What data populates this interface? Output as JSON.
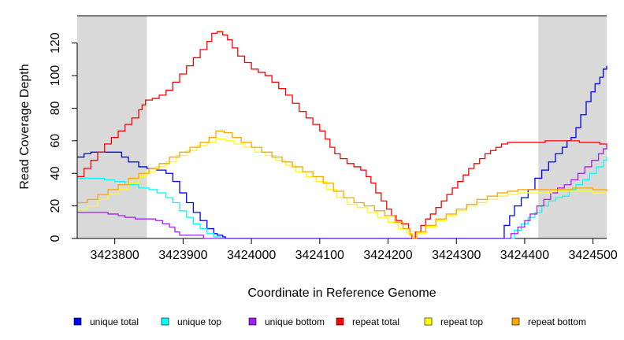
{
  "chart_data": {
    "type": "line",
    "xlabel": "Coordinate in Reference Genome",
    "ylabel": "Read Coverage Depth",
    "xlim": [
      3423745,
      3424520
    ],
    "ylim": [
      0,
      130
    ],
    "x_ticks": [
      3423800,
      3423900,
      3424000,
      3424100,
      3424200,
      3424300,
      3424400,
      3424500
    ],
    "x_tick_labels": [
      "3423800",
      "3423900",
      "3424000",
      "3424100",
      "3424200",
      "3424300",
      "3424400",
      "3424500"
    ],
    "y_ticks": [
      0,
      20,
      40,
      60,
      80,
      100,
      120
    ],
    "y_tick_labels": [
      "0",
      "20",
      "40",
      "60",
      "80",
      "100",
      "120"
    ],
    "shaded_regions": [
      [
        3423745,
        3423847
      ],
      [
        3424420,
        3424520
      ]
    ],
    "shade_color": "#d9d9d9",
    "step": true,
    "legend_position": "bottom",
    "series": [
      {
        "name": "unique total",
        "color": "#0000ff",
        "points": [
          [
            3423745,
            50
          ],
          [
            3423755,
            52
          ],
          [
            3423765,
            53
          ],
          [
            3423780,
            53
          ],
          [
            3423795,
            53
          ],
          [
            3423810,
            50
          ],
          [
            3423820,
            47
          ],
          [
            3423835,
            44
          ],
          [
            3423847,
            43
          ],
          [
            3423860,
            42
          ],
          [
            3423875,
            40
          ],
          [
            3423885,
            35
          ],
          [
            3423895,
            28
          ],
          [
            3423905,
            22
          ],
          [
            3423915,
            16
          ],
          [
            3423925,
            11
          ],
          [
            3423935,
            6
          ],
          [
            3423945,
            3
          ],
          [
            3423950,
            2
          ],
          [
            3423958,
            1
          ],
          [
            3423962,
            0
          ],
          [
            3424365,
            0
          ],
          [
            3424370,
            8
          ],
          [
            3424378,
            14
          ],
          [
            3424385,
            20
          ],
          [
            3424395,
            25
          ],
          [
            3424405,
            30
          ],
          [
            3424415,
            37
          ],
          [
            3424425,
            42
          ],
          [
            3424435,
            47
          ],
          [
            3424445,
            52
          ],
          [
            3424455,
            56
          ],
          [
            3424462,
            60
          ],
          [
            3424468,
            62
          ],
          [
            3424475,
            68
          ],
          [
            3424482,
            76
          ],
          [
            3424490,
            84
          ],
          [
            3424497,
            90
          ],
          [
            3424503,
            95
          ],
          [
            3424510,
            99
          ],
          [
            3424515,
            104
          ],
          [
            3424520,
            106
          ]
        ]
      },
      {
        "name": "unique top",
        "color": "#00ffff",
        "points": [
          [
            3423745,
            37
          ],
          [
            3423765,
            37
          ],
          [
            3423785,
            36
          ],
          [
            3423800,
            35
          ],
          [
            3423815,
            33
          ],
          [
            3423835,
            31
          ],
          [
            3423850,
            30
          ],
          [
            3423862,
            28
          ],
          [
            3423875,
            25
          ],
          [
            3423885,
            22
          ],
          [
            3423895,
            17
          ],
          [
            3423905,
            13
          ],
          [
            3423915,
            9
          ],
          [
            3423925,
            6
          ],
          [
            3423935,
            3
          ],
          [
            3423945,
            1
          ],
          [
            3423955,
            0
          ],
          [
            3424380,
            0
          ],
          [
            3424385,
            5
          ],
          [
            3424395,
            9
          ],
          [
            3424405,
            13
          ],
          [
            3424415,
            16
          ],
          [
            3424425,
            20
          ],
          [
            3424435,
            23
          ],
          [
            3424445,
            25
          ],
          [
            3424455,
            26
          ],
          [
            3424465,
            30
          ],
          [
            3424475,
            33
          ],
          [
            3424485,
            36
          ],
          [
            3424495,
            40
          ],
          [
            3424505,
            44
          ],
          [
            3424515,
            48
          ],
          [
            3424520,
            50
          ]
        ]
      },
      {
        "name": "unique bottom",
        "color": "#a020f0",
        "points": [
          [
            3423745,
            16
          ],
          [
            3423770,
            16
          ],
          [
            3423790,
            15
          ],
          [
            3423805,
            14
          ],
          [
            3423815,
            13
          ],
          [
            3423830,
            12
          ],
          [
            3423847,
            12
          ],
          [
            3423860,
            11
          ],
          [
            3423870,
            9
          ],
          [
            3423880,
            7
          ],
          [
            3423888,
            4
          ],
          [
            3423895,
            2
          ],
          [
            3423925,
            2
          ],
          [
            3423930,
            0
          ],
          [
            3424375,
            0
          ],
          [
            3424380,
            3
          ],
          [
            3424390,
            7
          ],
          [
            3424400,
            11
          ],
          [
            3424408,
            15
          ],
          [
            3424418,
            20
          ],
          [
            3424428,
            24
          ],
          [
            3424438,
            28
          ],
          [
            3424448,
            31
          ],
          [
            3424458,
            33
          ],
          [
            3424468,
            36
          ],
          [
            3424478,
            40
          ],
          [
            3424488,
            44
          ],
          [
            3424498,
            48
          ],
          [
            3424508,
            52
          ],
          [
            3424515,
            55
          ],
          [
            3424520,
            57
          ]
        ]
      },
      {
        "name": "repeat total",
        "color": "#ff0000",
        "points": [
          [
            3423745,
            38
          ],
          [
            3423755,
            43
          ],
          [
            3423765,
            48
          ],
          [
            3423775,
            53
          ],
          [
            3423785,
            58
          ],
          [
            3423795,
            62
          ],
          [
            3423805,
            66
          ],
          [
            3423815,
            70
          ],
          [
            3423825,
            74
          ],
          [
            3423835,
            79
          ],
          [
            3423840,
            82
          ],
          [
            3423845,
            85
          ],
          [
            3423855,
            86
          ],
          [
            3423865,
            88
          ],
          [
            3423875,
            91
          ],
          [
            3423885,
            96
          ],
          [
            3423895,
            101
          ],
          [
            3423905,
            106
          ],
          [
            3423915,
            111
          ],
          [
            3423925,
            116
          ],
          [
            3423935,
            121
          ],
          [
            3423942,
            126
          ],
          [
            3423950,
            127
          ],
          [
            3423958,
            125
          ],
          [
            3423965,
            122
          ],
          [
            3423972,
            117
          ],
          [
            3423980,
            112
          ],
          [
            3423990,
            108
          ],
          [
            3424000,
            104
          ],
          [
            3424010,
            102
          ],
          [
            3424020,
            100
          ],
          [
            3424030,
            96
          ],
          [
            3424040,
            92
          ],
          [
            3424050,
            88
          ],
          [
            3424060,
            83
          ],
          [
            3424070,
            78
          ],
          [
            3424080,
            74
          ],
          [
            3424090,
            70
          ],
          [
            3424100,
            66
          ],
          [
            3424108,
            61
          ],
          [
            3424115,
            56
          ],
          [
            3424122,
            52
          ],
          [
            3424130,
            49
          ],
          [
            3424140,
            46
          ],
          [
            3424150,
            44
          ],
          [
            3424160,
            42
          ],
          [
            3424168,
            38
          ],
          [
            3424175,
            34
          ],
          [
            3424182,
            28
          ],
          [
            3424190,
            23
          ],
          [
            3424198,
            18
          ],
          [
            3424205,
            14
          ],
          [
            3424212,
            11
          ],
          [
            3424220,
            9
          ],
          [
            3424230,
            6
          ],
          [
            3424232,
            3
          ],
          [
            3424235,
            0
          ],
          [
            3424240,
            4
          ],
          [
            3424248,
            8
          ],
          [
            3424255,
            12
          ],
          [
            3424262,
            15
          ],
          [
            3424270,
            19
          ],
          [
            3424278,
            23
          ],
          [
            3424286,
            27
          ],
          [
            3424294,
            31
          ],
          [
            3424302,
            35
          ],
          [
            3424310,
            39
          ],
          [
            3424318,
            43
          ],
          [
            3424326,
            46
          ],
          [
            3424334,
            49
          ],
          [
            3424342,
            52
          ],
          [
            3424350,
            54
          ],
          [
            3424358,
            56
          ],
          [
            3424366,
            58
          ],
          [
            3424375,
            59
          ],
          [
            3424390,
            59
          ],
          [
            3424410,
            59
          ],
          [
            3424430,
            60
          ],
          [
            3424460,
            60
          ],
          [
            3424480,
            59
          ],
          [
            3424500,
            59
          ],
          [
            3424510,
            58
          ],
          [
            3424520,
            57
          ]
        ]
      },
      {
        "name": "repeat top",
        "color": "#ffff00",
        "points": [
          [
            3423745,
            18
          ],
          [
            3423760,
            20
          ],
          [
            3423775,
            24
          ],
          [
            3423790,
            27
          ],
          [
            3423805,
            30
          ],
          [
            3423820,
            34
          ],
          [
            3423835,
            38
          ],
          [
            3423845,
            41
          ],
          [
            3423860,
            44
          ],
          [
            3423875,
            47
          ],
          [
            3423890,
            51
          ],
          [
            3423905,
            54
          ],
          [
            3423920,
            57
          ],
          [
            3423935,
            59
          ],
          [
            3423948,
            61
          ],
          [
            3423962,
            60
          ],
          [
            3423975,
            58
          ],
          [
            3423990,
            56
          ],
          [
            3424005,
            53
          ],
          [
            3424020,
            51
          ],
          [
            3424035,
            48
          ],
          [
            3424050,
            45
          ],
          [
            3424065,
            41
          ],
          [
            3424080,
            38
          ],
          [
            3424095,
            35
          ],
          [
            3424110,
            30
          ],
          [
            3424125,
            25
          ],
          [
            3424140,
            21
          ],
          [
            3424155,
            19
          ],
          [
            3424170,
            16
          ],
          [
            3424185,
            13
          ],
          [
            3424200,
            10
          ],
          [
            3424215,
            6
          ],
          [
            3424228,
            3
          ],
          [
            3424236,
            0
          ],
          [
            3424242,
            3
          ],
          [
            3424255,
            7
          ],
          [
            3424270,
            11
          ],
          [
            3424285,
            14
          ],
          [
            3424300,
            17
          ],
          [
            3424315,
            20
          ],
          [
            3424330,
            22
          ],
          [
            3424345,
            24
          ],
          [
            3424360,
            26
          ],
          [
            3424375,
            27
          ],
          [
            3424390,
            28
          ],
          [
            3424410,
            28
          ],
          [
            3424440,
            29
          ],
          [
            3424470,
            29
          ],
          [
            3424500,
            28
          ],
          [
            3424520,
            28
          ]
        ]
      },
      {
        "name": "repeat bottom",
        "color": "#ffa500",
        "points": [
          [
            3423745,
            22
          ],
          [
            3423760,
            24
          ],
          [
            3423775,
            27
          ],
          [
            3423790,
            30
          ],
          [
            3423805,
            33
          ],
          [
            3423820,
            37
          ],
          [
            3423835,
            40
          ],
          [
            3423850,
            43
          ],
          [
            3423865,
            46
          ],
          [
            3423880,
            50
          ],
          [
            3423895,
            53
          ],
          [
            3423910,
            56
          ],
          [
            3423925,
            59
          ],
          [
            3423938,
            62
          ],
          [
            3423948,
            66
          ],
          [
            3423960,
            65
          ],
          [
            3423972,
            62
          ],
          [
            3423985,
            59
          ],
          [
            3424000,
            56
          ],
          [
            3424015,
            53
          ],
          [
            3424030,
            50
          ],
          [
            3424045,
            47
          ],
          [
            3424060,
            44
          ],
          [
            3424075,
            41
          ],
          [
            3424090,
            38
          ],
          [
            3424105,
            34
          ],
          [
            3424120,
            29
          ],
          [
            3424135,
            25
          ],
          [
            3424150,
            22
          ],
          [
            3424165,
            20
          ],
          [
            3424180,
            17
          ],
          [
            3424195,
            14
          ],
          [
            3424210,
            10
          ],
          [
            3424222,
            6
          ],
          [
            3424232,
            2
          ],
          [
            3424236,
            0
          ],
          [
            3424242,
            4
          ],
          [
            3424255,
            8
          ],
          [
            3424270,
            12
          ],
          [
            3424285,
            15
          ],
          [
            3424300,
            18
          ],
          [
            3424315,
            21
          ],
          [
            3424330,
            24
          ],
          [
            3424345,
            26
          ],
          [
            3424360,
            28
          ],
          [
            3424375,
            29
          ],
          [
            3424390,
            30
          ],
          [
            3424410,
            30
          ],
          [
            3424440,
            30
          ],
          [
            3424470,
            31
          ],
          [
            3424500,
            30
          ],
          [
            3424520,
            29
          ]
        ]
      }
    ]
  }
}
